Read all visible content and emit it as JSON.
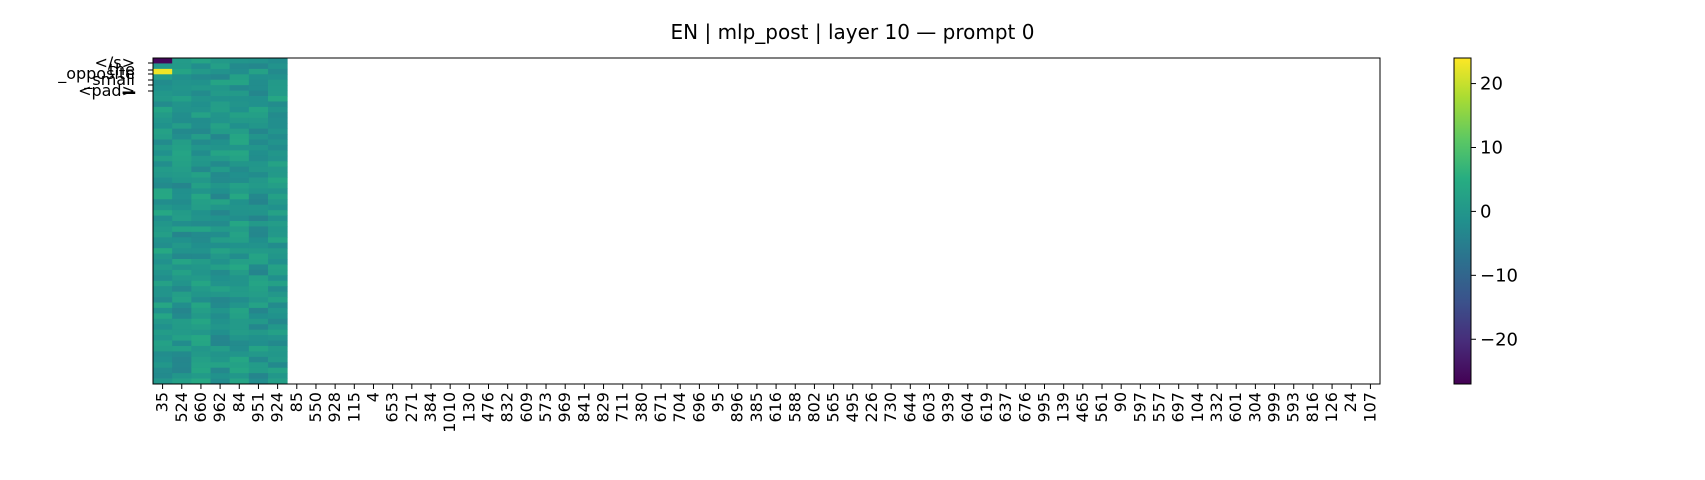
{
  "chart_data": {
    "type": "heatmap",
    "title": "EN | mlp_post | layer 10 — prompt 0",
    "xlabel": "",
    "ylabel": "",
    "x_tick_labels": [
      "35",
      "524",
      "660",
      "962",
      "84",
      "951",
      "924",
      "85",
      "550",
      "928",
      "115",
      "4",
      "653",
      "271",
      "384",
      "1010",
      "130",
      "476",
      "832",
      "609",
      "573",
      "969",
      "841",
      "829",
      "711",
      "380",
      "671",
      "704",
      "696",
      "95",
      "896",
      "385",
      "616",
      "588",
      "802",
      "565",
      "495",
      "226",
      "730",
      "644",
      "603",
      "939",
      "604",
      "619",
      "637",
      "676",
      "995",
      "139",
      "465",
      "561",
      "90",
      "597",
      "557",
      "697",
      "104",
      "332",
      "601",
      "304",
      "999",
      "593",
      "816",
      "126",
      "24",
      "107"
    ],
    "y_tick_labels": [
      "</s>",
      "the",
      "_opposite",
      "_small",
      "▁",
      "<pad>"
    ],
    "n_rows": 60,
    "filled_columns": 7,
    "filled_rows_pattern": "columns 35, 524, 660, 962, 84, 951, 924 contain values; all other columns are empty",
    "highlight_cells": [
      {
        "row": 0,
        "col": 0,
        "value": -26
      },
      {
        "row": 2,
        "col": 0,
        "value": 23
      }
    ],
    "value_range": [
      -27,
      24
    ],
    "colorbar": {
      "colormap": "viridis",
      "ticks": [
        20,
        10,
        0,
        -10,
        -20
      ],
      "tick_labels": [
        "20",
        "10",
        "0",
        "−10",
        "−20"
      ]
    },
    "grid": false
  }
}
